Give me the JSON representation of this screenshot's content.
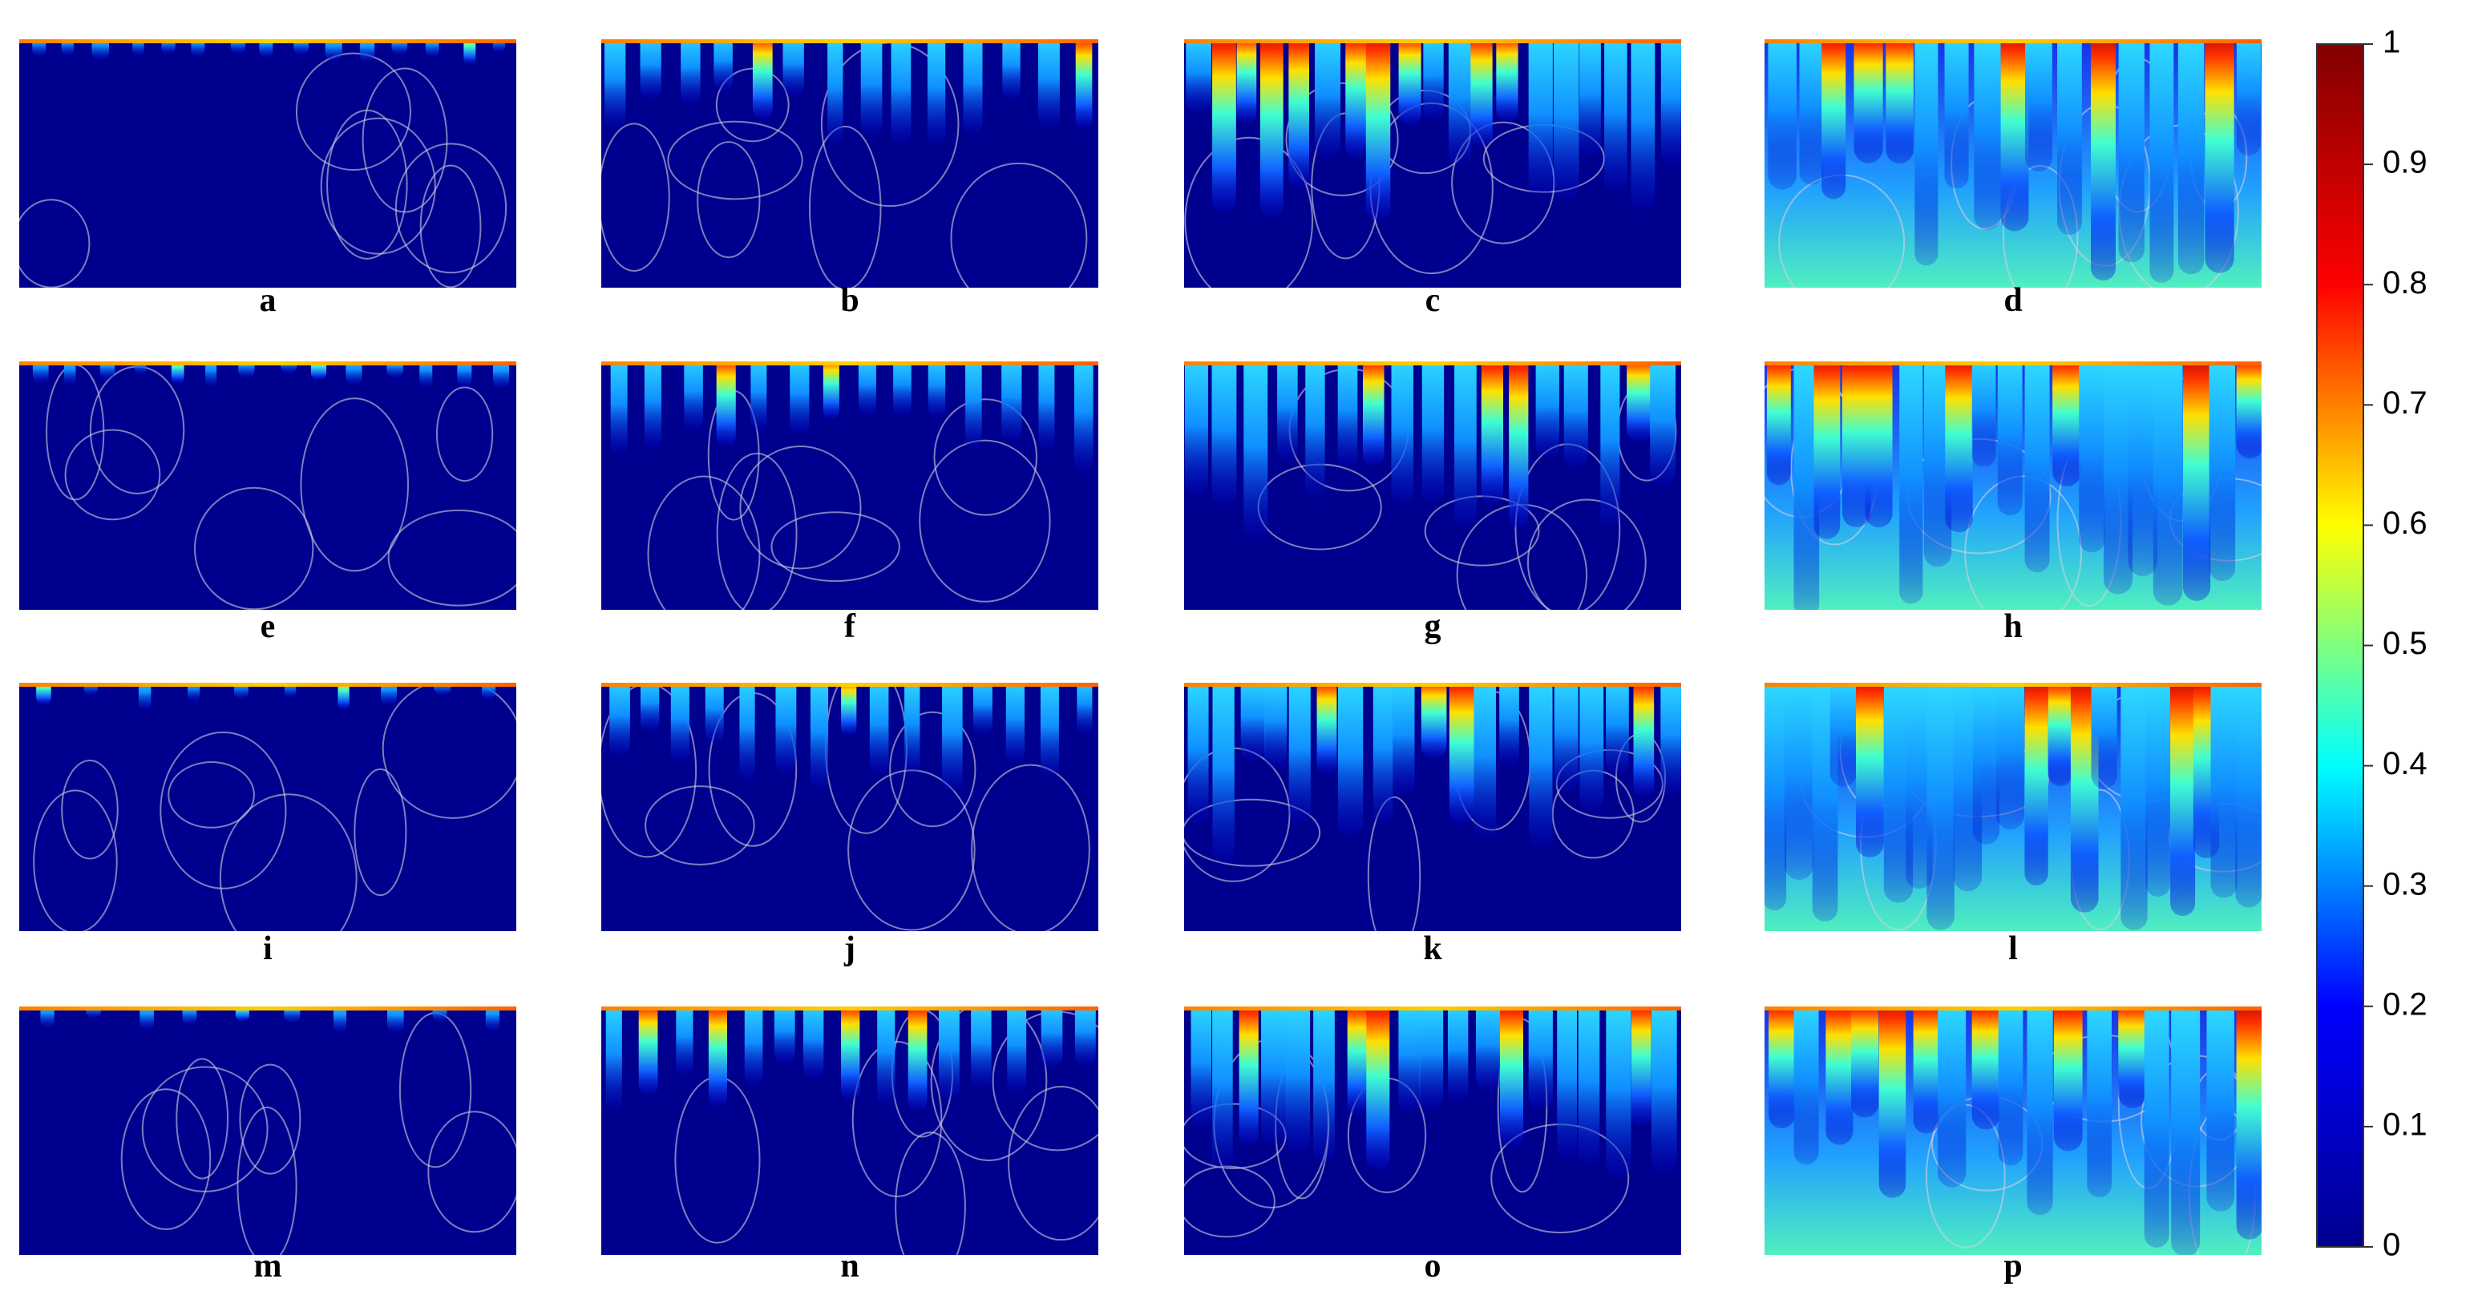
{
  "chart_data": {
    "type": "field-panels",
    "panels": [
      "a",
      "b",
      "c",
      "d",
      "e",
      "f",
      "g",
      "h",
      "i",
      "j",
      "k",
      "l",
      "m",
      "n",
      "o",
      "p"
    ],
    "colorbar": {
      "lim": [
        0,
        1
      ],
      "ticks": [
        0,
        0.1,
        0.2,
        0.3,
        0.4,
        0.5,
        0.6,
        0.7,
        0.8,
        0.9,
        1
      ],
      "colors": [
        "#00008f",
        "#0000ff",
        "#00ffff",
        "#ffff00",
        "#ff0000",
        "#800000"
      ]
    }
  }
}
